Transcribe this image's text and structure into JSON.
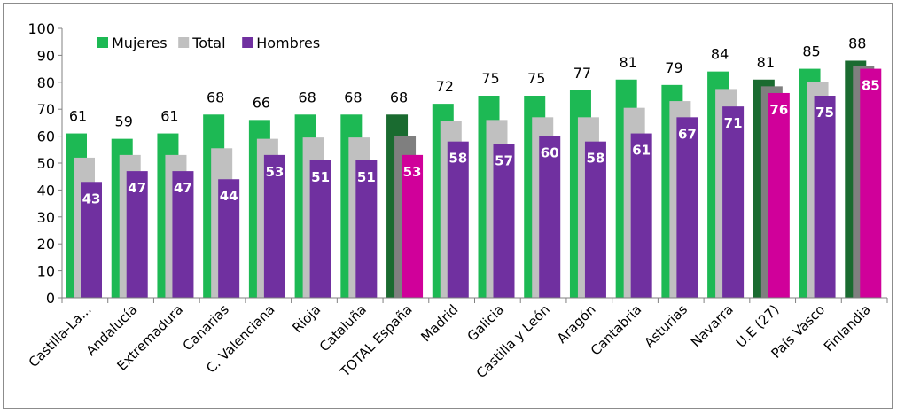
{
  "chart_data": {
    "type": "bar",
    "categories": [
      "Castilla-La...",
      "Andalucía",
      "Extremadura",
      "Canarias",
      "C. Valenciana",
      "Rioja",
      "Cataluña",
      "TOTAL España",
      "Madrid",
      "Galicia",
      "Castilla y León",
      "Aragón",
      "Cantabria",
      "Asturias",
      "Navarra",
      "U.E (27)",
      "País Vasco",
      "Finlandia"
    ],
    "series": [
      {
        "name": "Mujeres",
        "values": [
          61,
          59,
          61,
          68,
          66,
          68,
          68,
          68,
          72,
          75,
          75,
          77,
          81,
          79,
          84,
          81,
          85,
          88
        ]
      },
      {
        "name": "Total",
        "values": [
          52,
          53,
          53,
          55.5,
          59,
          59.5,
          59.5,
          60,
          65.5,
          66,
          67,
          67,
          70.5,
          73,
          77.5,
          78.5,
          80,
          86
        ]
      },
      {
        "name": "Hombres",
        "values": [
          43,
          47,
          47,
          44,
          53,
          51,
          51,
          53,
          58,
          57,
          60,
          58,
          61,
          67,
          71,
          76,
          75,
          85
        ]
      }
    ],
    "mujeres_labels": [
      "61",
      "59",
      "61",
      "68",
      "66",
      "68",
      "68",
      "68",
      "72",
      "75",
      "75",
      "77",
      "81",
      "79",
      "84",
      "81",
      "85",
      "88"
    ],
    "hombres_labels": [
      "43",
      "47",
      "47",
      "44",
      "53",
      "51",
      "51",
      "53",
      "58",
      "57",
      "60",
      "58",
      "61",
      "67",
      "71",
      "76",
      "75",
      "85"
    ],
    "yticks": [
      "0",
      "10",
      "20",
      "30",
      "40",
      "50",
      "60",
      "70",
      "80",
      "90",
      "100"
    ],
    "ylim": [
      0,
      100
    ],
    "grid": false,
    "legend_position": "top-left",
    "highlighted_categories": [
      "TOTAL España",
      "U.E (27)",
      "Finlandia"
    ],
    "colors": {
      "mujeres": "#1db954",
      "total": "#c0c0c0",
      "hombres": "#7030a0",
      "mujeres_highlight": "#1a6b30",
      "total_highlight": "#7f7f7f",
      "hombres_highlight": "#d0009a",
      "axis": "#808080",
      "text": "#000000",
      "bar_label_inside": "#ffffff"
    }
  }
}
